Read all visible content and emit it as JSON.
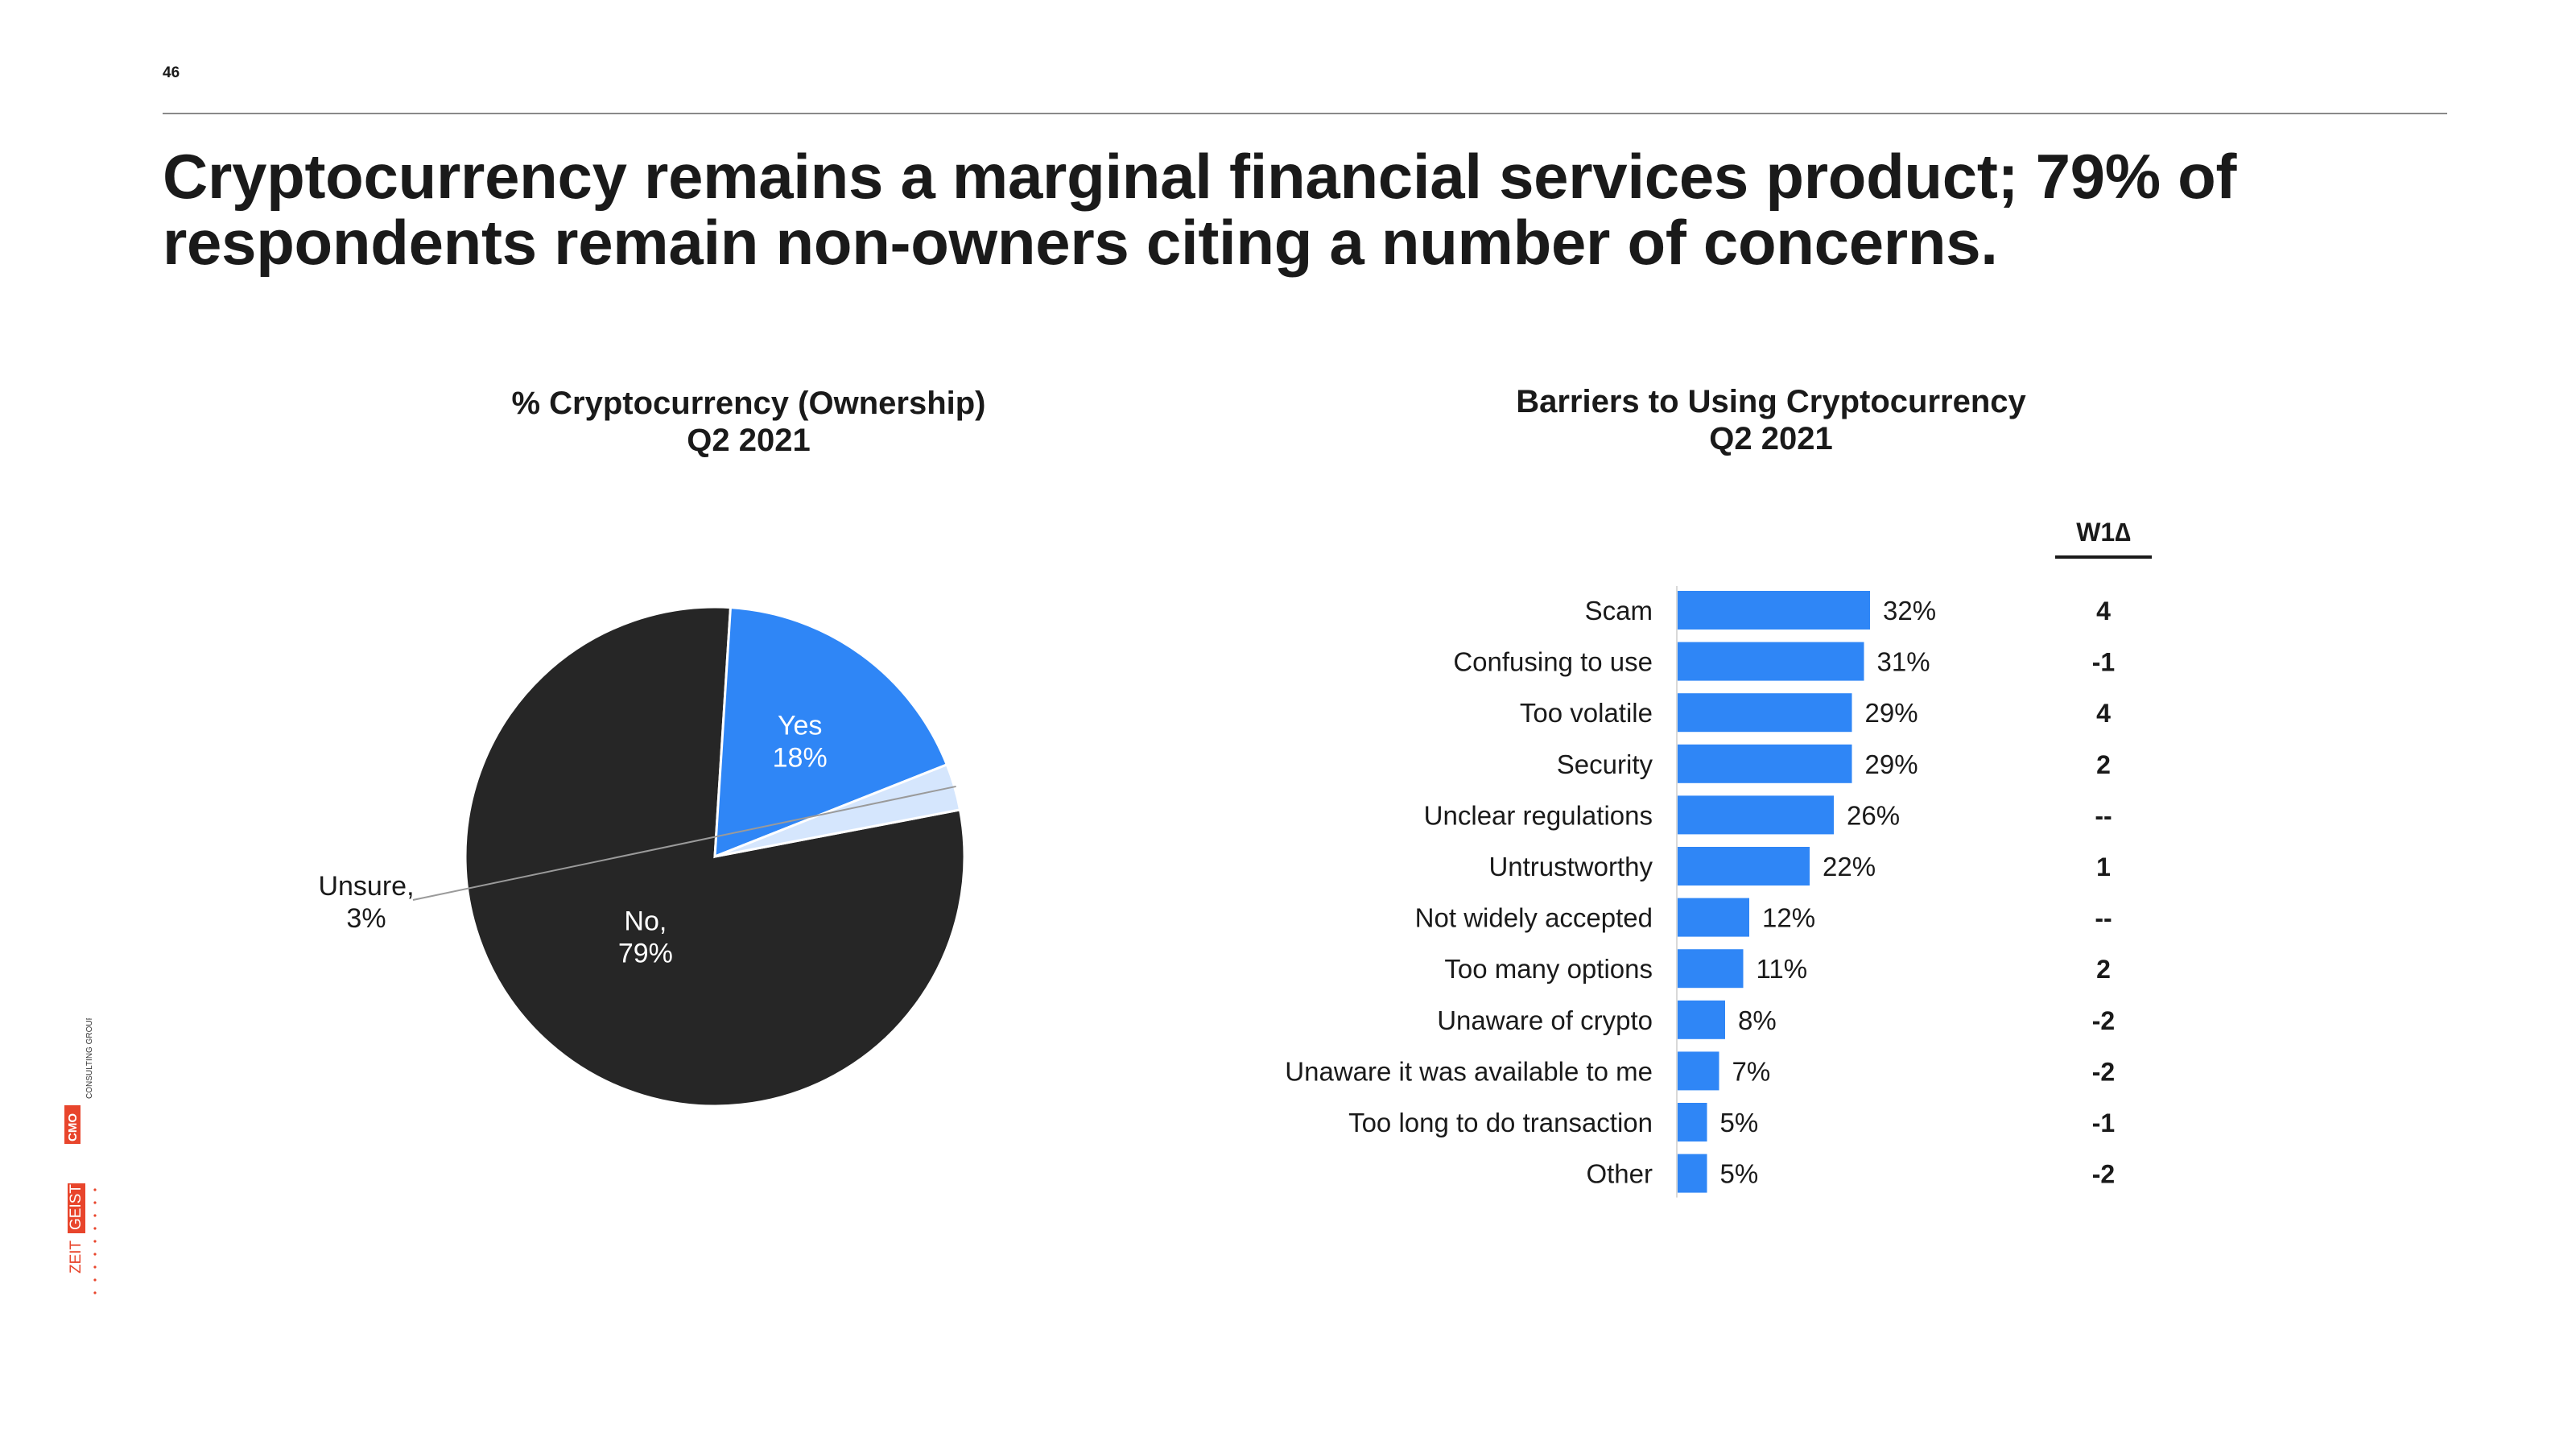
{
  "page": {
    "number": "46",
    "headline": "Cryptocurrency remains a marginal financial services product; 79% of respondents remain non-owners citing a number of concerns."
  },
  "logos": {
    "cmo_mark": "CMO",
    "cmo_text": "CONSULTING GROUP",
    "zg_part1": "ZEIT",
    "zg_part2": "GEIST"
  },
  "colors": {
    "no": "#262626",
    "yes": "#2f86f6",
    "unsure": "#d5e6fd",
    "bar": "#2f86f6",
    "brand_red": "#e8452c"
  },
  "chart_data": [
    {
      "type": "pie",
      "title": "% Cryptocurrency (Ownership)",
      "subtitle": "Q2 2021",
      "slices": [
        {
          "label": "No,",
          "value": 79,
          "value_label": "79%",
          "color": "#262626"
        },
        {
          "label": "Yes",
          "value": 18,
          "value_label": "18%",
          "color": "#2f86f6"
        },
        {
          "label": "Unsure,",
          "value": 3,
          "value_label": "3%",
          "color": "#d5e6fd"
        }
      ]
    },
    {
      "type": "bar",
      "orientation": "horizontal",
      "title": "Barriers to Using Cryptocurrency",
      "subtitle": "Q2 2021",
      "categories": [
        "Scam",
        "Confusing to use",
        "Too volatile",
        "Security",
        "Unclear regulations",
        "Untrustworthy",
        "Not widely accepted",
        "Too many options",
        "Unaware of crypto",
        "Unaware it was available to me",
        "Too long to do transaction",
        "Other"
      ],
      "values": [
        32,
        31,
        29,
        29,
        26,
        22,
        12,
        11,
        8,
        7,
        5,
        5
      ],
      "value_labels": [
        "32%",
        "31%",
        "29%",
        "29%",
        "26%",
        "22%",
        "12%",
        "11%",
        "8%",
        "7%",
        "5%",
        "5%"
      ],
      "xlim": [
        0,
        32
      ],
      "delta_header": "W1∆",
      "deltas": [
        "4",
        "-1",
        "4",
        "2",
        "--",
        "1",
        "--",
        "2",
        "-2",
        "-2",
        "-1",
        "-2"
      ]
    }
  ]
}
